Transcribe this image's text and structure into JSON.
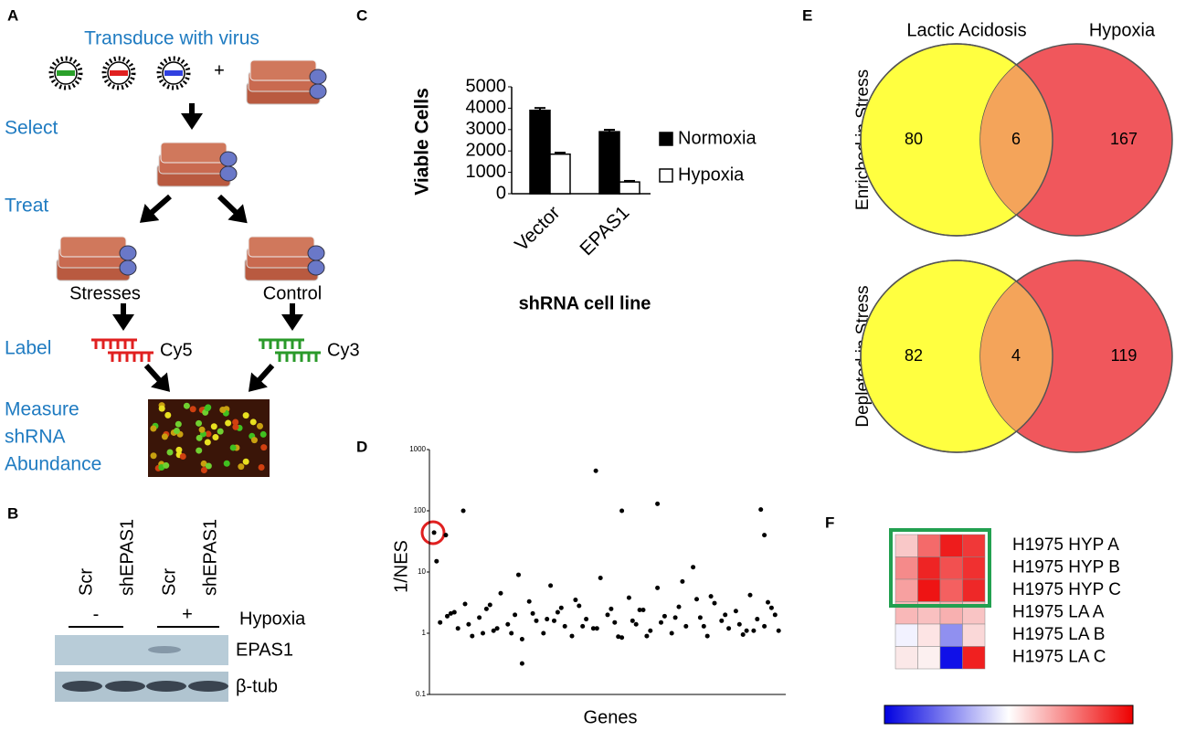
{
  "panel_a": {
    "label": "A",
    "title": "Transduce with virus",
    "plus": "+",
    "steps": [
      "Select",
      "Treat",
      "Label"
    ],
    "measure": [
      "Measure",
      "shRNA",
      "Abundance"
    ],
    "conditions": [
      "Stresses",
      "Control"
    ],
    "dyes": [
      "Cy5",
      "Cy3"
    ]
  },
  "panel_b": {
    "label": "B",
    "lanes": [
      "Scr",
      "shEPAS1",
      "Scr",
      "shEPAS1"
    ],
    "hypoxia_states": [
      "-",
      "+"
    ],
    "hypoxia": "Hypoxia",
    "rows": [
      "EPAS1",
      "β-tub"
    ]
  },
  "chart_data": [
    {
      "type": "bar",
      "label": "C",
      "ylabel": "Viable Cells",
      "xlabel": "shRNA cell line",
      "categories": [
        "Vector",
        "EPAS1"
      ],
      "series": [
        {
          "name": "Normoxia",
          "color": "#000000",
          "values": [
            3900,
            2900
          ],
          "errors": [
            110,
            90
          ]
        },
        {
          "name": "Hypoxia",
          "color": "#ffffff",
          "values": [
            1850,
            550
          ],
          "errors": [
            70,
            50
          ]
        }
      ],
      "ylim": [
        0,
        5000
      ],
      "yticks": [
        0,
        1000,
        2000,
        3000,
        4000,
        5000
      ]
    },
    {
      "type": "scatter",
      "label": "D",
      "ylabel": "1/NES",
      "xlabel": "Genes",
      "log_y": true,
      "color": "#000000",
      "xlim": [
        0,
        100
      ],
      "ylim": [
        0.1,
        1000
      ],
      "yticks": [
        0.1,
        1,
        10,
        100,
        1000
      ],
      "x": [
        1.3,
        9.5,
        46.7,
        54,
        64,
        93,
        94,
        26,
        4.6,
        3,
        6,
        8,
        10,
        12,
        14,
        16,
        18,
        20,
        22,
        24,
        26,
        28,
        30,
        32,
        34,
        36,
        38,
        40,
        42,
        44,
        46,
        48,
        50,
        52,
        54,
        56,
        58,
        60,
        62,
        64,
        66,
        68,
        70,
        72,
        74,
        76,
        78,
        80,
        82,
        84,
        86,
        88,
        90,
        92,
        94,
        96,
        98,
        5,
        11,
        17,
        23,
        29,
        35,
        41,
        47,
        53,
        59,
        65,
        71,
        77,
        83,
        89,
        95,
        7,
        15,
        25,
        33,
        43,
        51,
        61,
        69,
        79,
        87,
        97,
        2,
        19,
        37,
        57,
        75,
        91
      ],
      "y": [
        44,
        100,
        450,
        100,
        130,
        105,
        40,
        0.32,
        40,
        1.5,
        2.1,
        1.2,
        3.0,
        0.9,
        1.8,
        2.5,
        1.1,
        4.5,
        1.4,
        2.0,
        0.8,
        3.3,
        1.6,
        1.0,
        6.0,
        2.2,
        1.3,
        0.9,
        2.8,
        1.7,
        1.2,
        8.0,
        2.0,
        1.5,
        0.85,
        3.8,
        1.4,
        2.4,
        1.1,
        5.5,
        1.9,
        1.0,
        2.7,
        1.3,
        12,
        1.8,
        0.9,
        3.1,
        1.6,
        1.2,
        2.3,
        0.95,
        4.2,
        1.7,
        1.3,
        2.6,
        1.1,
        1.9,
        1.4,
        2.9,
        1.0,
        2.1,
        1.6,
        3.5,
        1.2,
        0.88,
        2.4,
        1.5,
        7.0,
        1.3,
        2.0,
        1.1,
        3.2,
        2.2,
        1.0,
        9.0,
        1.7,
        1.3,
        2.5,
        0.9,
        1.8,
        4.0,
        1.4,
        2.0,
        15,
        1.2,
        2.6,
        1.6,
        3.6,
        1.1
      ]
    }
  ],
  "panel_e": {
    "label": "E",
    "sets": [
      "Lactic Acidosis",
      "Hypoxia"
    ],
    "colors": [
      "#ffff40",
      "#f0575c",
      "#f4a45a"
    ],
    "rows": [
      {
        "title": "Enriched in Stress",
        "counts": [
          80,
          6,
          167
        ]
      },
      {
        "title": "Depleted in Stress",
        "counts": [
          82,
          4,
          119
        ]
      }
    ]
  },
  "panel_f": {
    "label": "F",
    "rows": [
      "H1975 HYP A",
      "H1975 HYP B",
      "H1975 HYP C",
      "H1975 LA A",
      "H1975 LA B",
      "H1975 LA C"
    ],
    "colors": [
      [
        "#f9c8c8",
        "#f46a6a",
        "#ee1c1c",
        "#f03838"
      ],
      [
        "#f58a8a",
        "#ee2424",
        "#f25050",
        "#f03030"
      ],
      [
        "#f7a0a0",
        "#ee1414",
        "#f46060",
        "#ee2828"
      ],
      [
        "#f9b8b8",
        "#f9c0c0",
        "#f8b0b0",
        "#f9c4c4"
      ],
      [
        "#f2f2ff",
        "#fde4e4",
        "#9090f0",
        "#fad8d8"
      ],
      [
        "#fbe8e8",
        "#fcf0f0",
        "#1010e8",
        "#f02020"
      ]
    ]
  }
}
